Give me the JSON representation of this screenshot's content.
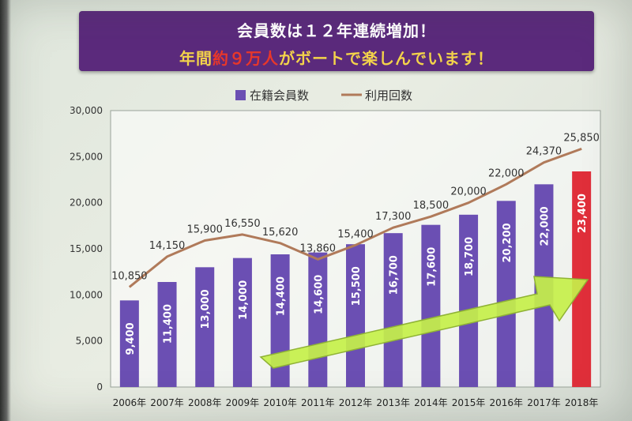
{
  "banner": {
    "line1": "会員数は１２年連続増加！",
    "line2_prefix": "年間",
    "line2_highlight": "約９万人",
    "line2_suffix": "がボートで楽しんでいます！"
  },
  "colors": {
    "bar": "#6b4fb3",
    "bar_highlight": "#e02f3a",
    "line": "#b07a5a",
    "arrow": "#c6f04a",
    "banner": "#5b2a7c"
  },
  "chart_data": {
    "type": "bar",
    "categories": [
      "2006年",
      "2007年",
      "2008年",
      "2009年",
      "2010年",
      "2011年",
      "2012年",
      "2013年",
      "2014年",
      "2015年",
      "2016年",
      "2017年",
      "2018年"
    ],
    "series": [
      {
        "name": "在籍会員数",
        "type": "bar",
        "values": [
          9400,
          11400,
          13000,
          14000,
          14400,
          14600,
          15500,
          16700,
          17600,
          18700,
          20200,
          22000,
          23400
        ]
      },
      {
        "name": "利用回数",
        "type": "line",
        "values": [
          10850,
          14150,
          15900,
          16550,
          15620,
          13860,
          15400,
          17300,
          18500,
          20000,
          22000,
          24370,
          25850
        ]
      }
    ],
    "bar_labels": [
      "9,400",
      "11,400",
      "13,000",
      "14,000",
      "14,400",
      "14,600",
      "15,500",
      "16,700",
      "17,600",
      "18,700",
      "20,200",
      "22,000",
      "23,400"
    ],
    "line_labels": [
      "10,850",
      "14,150",
      "15,900",
      "16,550",
      "15,620",
      "13,860",
      "15,400",
      "17,300",
      "18,500",
      "20,000",
      "22,000",
      "24,370",
      "25,850"
    ],
    "y_ticks": [
      "0",
      "5,000",
      "10,000",
      "15,000",
      "20,000",
      "25,000",
      "30,000"
    ],
    "ylim": [
      0,
      30000
    ],
    "highlight_index": 12,
    "legend_placement": "top-center",
    "grid": false
  }
}
